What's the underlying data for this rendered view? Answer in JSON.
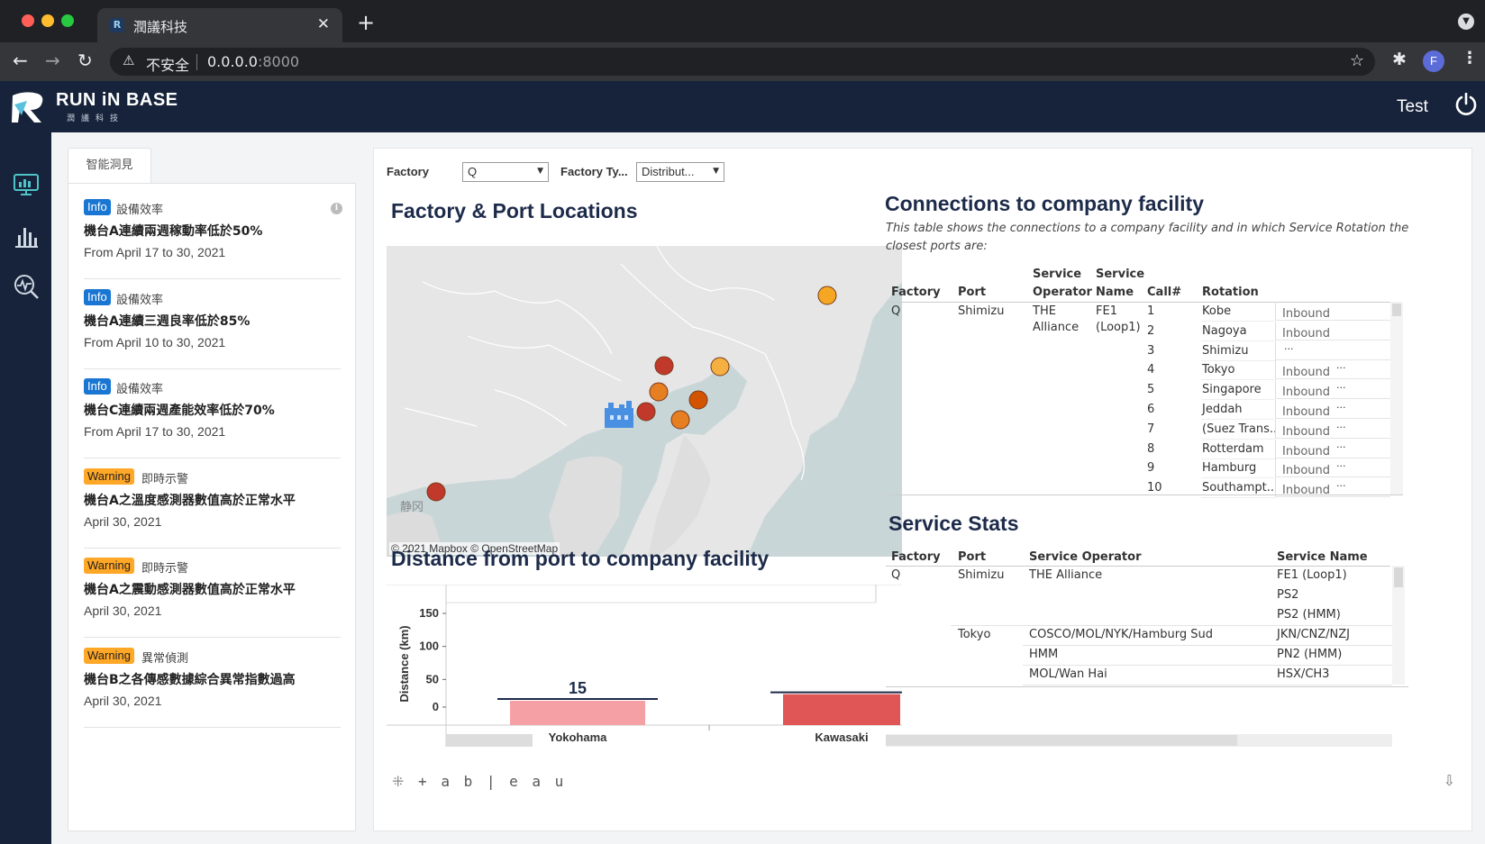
{
  "browser": {
    "tab_title": "潤議科技",
    "tab_favicon": "R",
    "close_glyph": "✕",
    "new_tab_glyph": "+",
    "security_label": "不安全",
    "url_host": "0.0.0.0",
    "url_port": ":8000",
    "profile_initial": "F"
  },
  "app": {
    "logo_text": "RUN iN BASE",
    "logo_sub": "潤議科技",
    "user": "Test"
  },
  "insights": {
    "tab_label": "智能洞見",
    "items": [
      {
        "level": "Info",
        "category": "設備效率",
        "title": "機台A連續兩週稼動率低於50%",
        "date": "From April 17 to 30, 2021"
      },
      {
        "level": "Info",
        "category": "設備效率",
        "title": "機台A連續三週良率低於85%",
        "date": "From April 10 to 30, 2021"
      },
      {
        "level": "Info",
        "category": "設備效率",
        "title": "機台C連續兩週產能效率低於70%",
        "date": "From April 17 to 30, 2021"
      },
      {
        "level": "Warning",
        "category": "即時示警",
        "title": "機台A之溫度感測器數值高於正常水平",
        "date": "April 30, 2021"
      },
      {
        "level": "Warning",
        "category": "即時示警",
        "title": "機台A之震動感測器數值高於正常水平",
        "date": "April 30, 2021"
      },
      {
        "level": "Warning",
        "category": "異常偵測",
        "title": "機台B之各傳感數據綜合異常指數過高",
        "date": "April 30, 2021"
      }
    ]
  },
  "filters": {
    "factory_label": "Factory",
    "factory_value": "Q",
    "factory_type_label": "Factory Ty...",
    "factory_type_value": "Distribut..."
  },
  "map": {
    "title": "Factory & Port Locations",
    "credit": "© 2021 Mapbox  © OpenStreetMap",
    "place_label": "静冈"
  },
  "connections": {
    "title": "Connections to company facility",
    "subtitle_1": "This table shows the connections to a company facility and in which Service Rotation the",
    "subtitle_2": "closest ports are:",
    "headers": {
      "factory": "Factory",
      "port": "Port",
      "operator_1": "Service",
      "operator_2": "Operator",
      "name_1": "Service",
      "name_2": "Name",
      "call": "Call#",
      "rotation": "Rotation"
    },
    "factory": "Q",
    "port": "Shimizu",
    "operator_1": "THE",
    "operator_2": "Alliance",
    "service_1": "FE1",
    "service_2": "(Loop1)",
    "rows": [
      {
        "call": "1",
        "rotation": "Kobe",
        "dir": "Inbound",
        "more": ""
      },
      {
        "call": "2",
        "rotation": "Nagoya",
        "dir": "Inbound",
        "more": ""
      },
      {
        "call": "3",
        "rotation": "Shimizu",
        "dir": "",
        "more": "···"
      },
      {
        "call": "4",
        "rotation": "Tokyo",
        "dir": "Inbound",
        "more": "···"
      },
      {
        "call": "5",
        "rotation": "Singapore",
        "dir": "Inbound",
        "more": "···"
      },
      {
        "call": "6",
        "rotation": "Jeddah",
        "dir": "Inbound",
        "more": "···"
      },
      {
        "call": "7",
        "rotation": "(Suez Trans..",
        "dir": "Inbound",
        "more": "···"
      },
      {
        "call": "8",
        "rotation": "Rotterdam",
        "dir": "Inbound",
        "more": "···"
      },
      {
        "call": "9",
        "rotation": "Hamburg",
        "dir": "Inbound",
        "more": "···"
      },
      {
        "call": "10",
        "rotation": "Southampt..",
        "dir": "Inbound",
        "more": "···"
      }
    ]
  },
  "stats": {
    "title": "Service Stats",
    "headers": {
      "factory": "Factory",
      "port": "Port",
      "operator": "Service Operator",
      "name": "Service Name"
    },
    "factory": "Q",
    "rows": [
      {
        "port": "Shimizu",
        "operator": "THE Alliance",
        "name": "FE1 (Loop1)"
      },
      {
        "port": "",
        "operator": "",
        "name": "PS2"
      },
      {
        "port": "",
        "operator": "",
        "name": "PS2 (HMM)"
      },
      {
        "port": "Tokyo",
        "operator": "COSCO/MOL/NYK/Hamburg Sud",
        "name": "JKN/CNZ/NZJ"
      },
      {
        "port": "",
        "operator": "HMM",
        "name": "PN2 (HMM)"
      },
      {
        "port": "",
        "operator": "MOL/Wan Hai",
        "name": "HSX/CH3"
      }
    ]
  },
  "chart_data": {
    "type": "bar",
    "title": "Distance from port to company facility",
    "ylabel": "Distance (km)",
    "ylim": [
      0,
      150
    ],
    "yticks": [
      "0",
      "50",
      "100",
      "150"
    ],
    "categories": [
      "Yokohama",
      "Kawasaki"
    ],
    "values": [
      15,
      25
    ],
    "value_labels": [
      "15",
      ""
    ],
    "colors": [
      "#f4a0a5",
      "#e05656"
    ]
  },
  "footer": {
    "tableau_text": "+ a b | e a u"
  }
}
